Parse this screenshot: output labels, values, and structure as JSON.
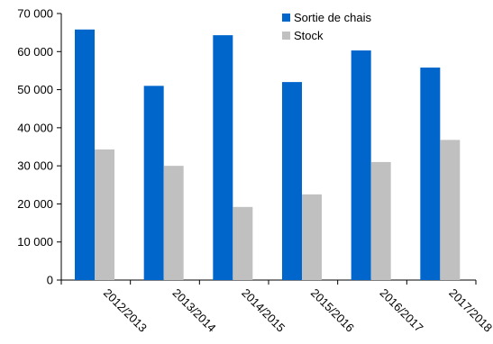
{
  "chart_data": {
    "type": "bar",
    "title": "",
    "xlabel": "",
    "ylabel": "",
    "categories": [
      "2012/2013",
      "2013/2014",
      "2014/2015",
      "2015/2016",
      "2016/2017",
      "2017/2018"
    ],
    "series": [
      {
        "name": "Sortie de chais",
        "color": "#0066cc",
        "values": [
          65800,
          51000,
          64300,
          52000,
          60300,
          55800
        ]
      },
      {
        "name": "Stock",
        "color": "#c0c0c0",
        "values": [
          34300,
          30000,
          19200,
          22500,
          31000,
          36800
        ]
      }
    ],
    "ylim": [
      0,
      70000
    ],
    "yticks": [
      0,
      10000,
      20000,
      30000,
      40000,
      50000,
      60000,
      70000
    ],
    "ytick_labels": [
      "0",
      "10 000",
      "20 000",
      "30 000",
      "40 000",
      "50 000",
      "60 000",
      "70 000"
    ],
    "grid": false,
    "legend_position": "top-right"
  }
}
